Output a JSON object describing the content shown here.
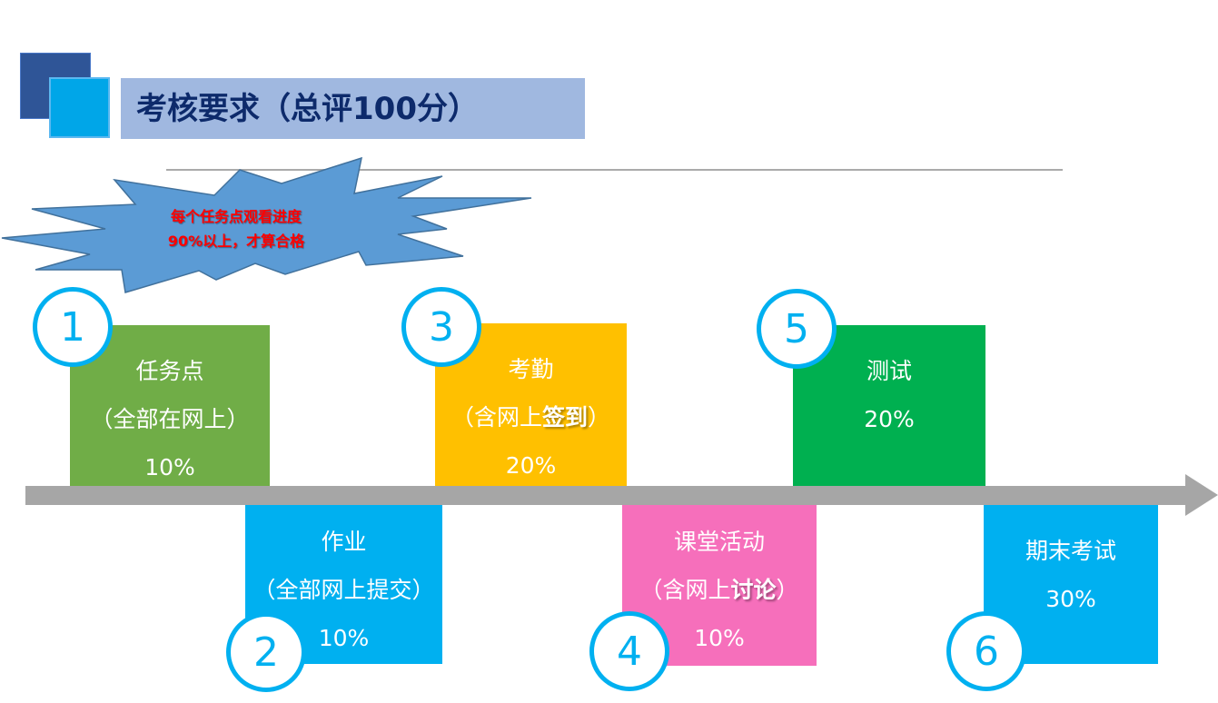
{
  "title": "考核要求（总评100分）",
  "callout": {
    "line1": "每个任务点观看进度",
    "line2": "90%以上，才算合格"
  },
  "colors": {
    "green": "#70ad47",
    "blue": "#00b0f0",
    "yellow": "#ffc000",
    "pink": "#f66fbb",
    "dark_green": "#00b050",
    "timeline": "#a6a6a6",
    "title_bar": "#a0b8e0",
    "title_text": "#0d2a6b",
    "callout_fill": "#5b9bd5",
    "callout_text": "#ff0000"
  },
  "items": [
    {
      "number": "1",
      "name": "任务点",
      "note_pre": "（全部在网上）",
      "note_bold": "",
      "note_post": "",
      "weight": "10%"
    },
    {
      "number": "2",
      "name": "作业",
      "note_pre": "（全部网上提交）",
      "note_bold": "",
      "note_post": "",
      "weight": "10%"
    },
    {
      "number": "3",
      "name": "考勤",
      "note_pre": "（含网上",
      "note_bold": "签到",
      "note_post": "）",
      "weight": "20%"
    },
    {
      "number": "4",
      "name": "课堂活动",
      "note_pre": "（含网上",
      "note_bold": "讨论",
      "note_post": "）",
      "weight": "10%"
    },
    {
      "number": "5",
      "name": "测试",
      "note_pre": "",
      "note_bold": "",
      "note_post": "",
      "weight": "20%"
    },
    {
      "number": "6",
      "name": "期末考试",
      "note_pre": "",
      "note_bold": "",
      "note_post": "",
      "weight": "30%"
    }
  ]
}
